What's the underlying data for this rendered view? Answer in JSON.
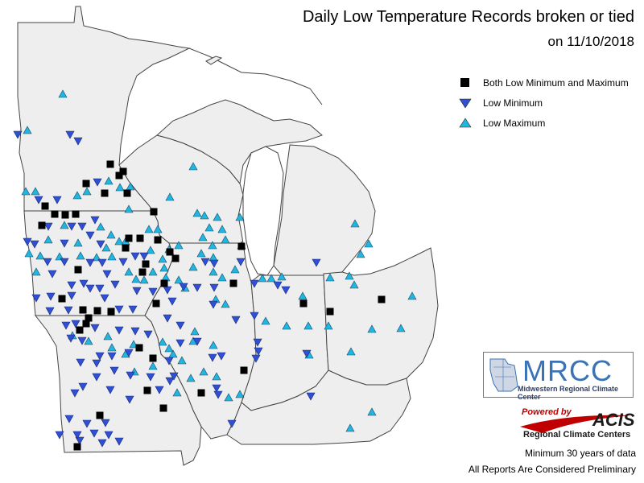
{
  "title": "Daily Low Temperature Records broken or tied",
  "subtitle": "on 11/10/2018",
  "legend": [
    {
      "label": "Both Low Minimum and Maximum",
      "symbol": "square",
      "color": "#000000"
    },
    {
      "label": "Low Minimum",
      "symbol": "triangle-down",
      "color": "#2f4fd6"
    },
    {
      "label": "Low Maximum",
      "symbol": "triangle-up",
      "color": "#1fb6e0"
    }
  ],
  "colors": {
    "land": "#eeeeee",
    "water": "#ffffff",
    "border": "#444444",
    "both": "#000000",
    "low_min": "#2f4fd6",
    "low_max": "#1fb6e0"
  },
  "logo": {
    "name": "MRCC",
    "subtitle": "Midwestern Regional Climate Center"
  },
  "acis": {
    "powered_by": "Powered by",
    "name": "ACIS",
    "subtitle": "Regional Climate Centers"
  },
  "notes": {
    "min_years": "Minimum 30 years of data",
    "preliminary": "All Reports Are Considered Preliminary"
  }
}
